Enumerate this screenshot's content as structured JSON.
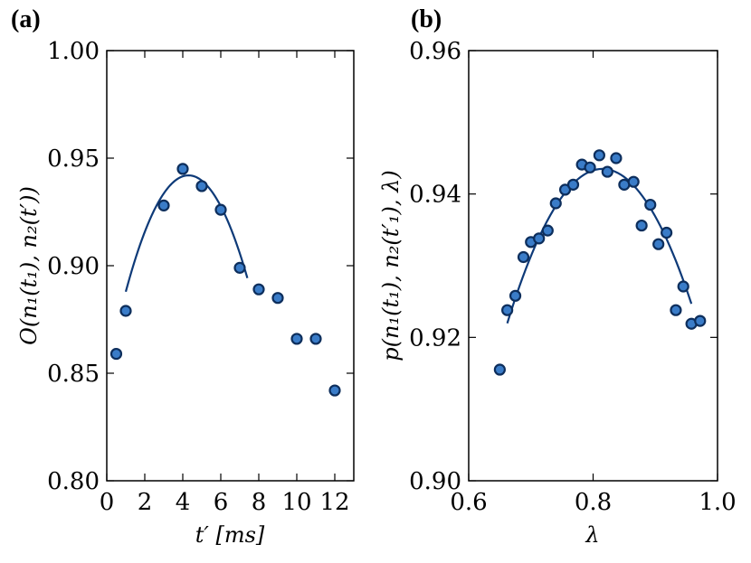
{
  "colors": {
    "marker_fill": "#3a7cc8",
    "marker_edge": "#0d2e5c",
    "fit_line": "#0e3a78"
  },
  "chart_data": [
    {
      "panel_label": "(a)",
      "type": "scatter",
      "xlabel": "t′ [ms]",
      "ylabel": "O(n₁(t₁), n₂(t′))",
      "xlim": [
        0,
        13
      ],
      "ylim": [
        0.8,
        1.0
      ],
      "xticks": [
        0,
        2,
        4,
        6,
        8,
        10,
        12
      ],
      "xtick_labels": [
        "0",
        "2",
        "4",
        "6",
        "8",
        "10",
        "12"
      ],
      "yticks": [
        0.8,
        0.85,
        0.9,
        0.95,
        1.0
      ],
      "ytick_labels": [
        "0.80",
        "0.85",
        "0.90",
        "0.95",
        "1.00"
      ],
      "points": {
        "x": [
          0.5,
          1,
          3,
          4,
          5,
          6,
          7,
          8,
          9,
          10,
          11,
          12
        ],
        "y": [
          0.859,
          0.879,
          0.928,
          0.945,
          0.937,
          0.926,
          0.899,
          0.889,
          0.885,
          0.866,
          0.866,
          0.842
        ]
      },
      "fit": {
        "type": "quadratic",
        "x_range": [
          1.0,
          7.4
        ],
        "vertex_x": 4.3,
        "vertex_y": 0.942,
        "curvature": -0.00497
      }
    },
    {
      "panel_label": "(b)",
      "type": "scatter",
      "xlabel": "λ",
      "ylabel": "p(n₁(t₁), n₂(t′₁), λ)",
      "xlim": [
        0.6,
        1.0
      ],
      "ylim": [
        0.9,
        0.96
      ],
      "xticks": [
        0.6,
        0.8,
        1.0
      ],
      "xtick_labels": [
        "0.6",
        "0.8",
        "1.0"
      ],
      "yticks": [
        0.9,
        0.92,
        0.94,
        0.96
      ],
      "ytick_labels": [
        "0.90",
        "0.92",
        "0.94",
        "0.96"
      ],
      "points": {
        "x": [
          0.65,
          0.662,
          0.675,
          0.688,
          0.7,
          0.713,
          0.727,
          0.74,
          0.755,
          0.768,
          0.782,
          0.795,
          0.81,
          0.823,
          0.837,
          0.85,
          0.865,
          0.878,
          0.892,
          0.905,
          0.918,
          0.933,
          0.945,
          0.958,
          0.972
        ],
        "y": [
          0.9155,
          0.9238,
          0.9258,
          0.9312,
          0.9333,
          0.9338,
          0.9349,
          0.9387,
          0.9406,
          0.9413,
          0.9441,
          0.9437,
          0.9454,
          0.9431,
          0.945,
          0.9413,
          0.9417,
          0.9356,
          0.9385,
          0.933,
          0.9346,
          0.9238,
          0.9271,
          0.9219,
          0.9223
        ]
      },
      "fit": {
        "type": "quadratic",
        "x_range": [
          0.662,
          0.958
        ],
        "vertex_x": 0.815,
        "vertex_y": 0.9435,
        "curvature": -0.92
      }
    }
  ]
}
